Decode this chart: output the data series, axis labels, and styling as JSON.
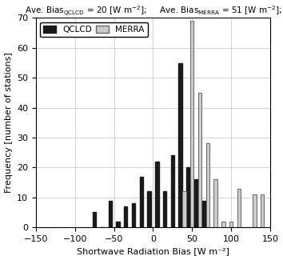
{
  "xlabel": "Shortwave Radiation Bias [W m⁻²]",
  "ylabel": "Frequency [number of stations]",
  "xlim": [
    -150,
    150
  ],
  "ylim": [
    0,
    70
  ],
  "yticks": [
    0,
    10,
    20,
    30,
    40,
    50,
    60,
    70
  ],
  "xticks": [
    -150,
    -100,
    -50,
    0,
    50,
    100,
    150
  ],
  "qclcd_centers": [
    -75,
    -65,
    -55,
    -45,
    -35,
    -25,
    -15,
    -5,
    5,
    15,
    25,
    35,
    45,
    55,
    65
  ],
  "qclcd_vals": [
    5,
    0,
    9,
    2,
    7,
    8,
    17,
    12,
    22,
    12,
    24,
    55,
    20,
    16,
    9
  ],
  "merra_centers": [
    -5,
    5,
    25,
    35,
    45,
    55,
    65,
    75,
    85,
    95,
    105,
    125,
    135
  ],
  "merra_vals": [
    0,
    0,
    0,
    12,
    69,
    45,
    28,
    16,
    2,
    2,
    13,
    11,
    11
  ],
  "qclcd_color": "#1a1a1a",
  "merra_color": "#cccccc",
  "merra_edge": "#666666",
  "bg_color": "#ffffff",
  "legend_qclcd": "QCLCD",
  "legend_merra": "MERRA",
  "bar_width": 4.5
}
